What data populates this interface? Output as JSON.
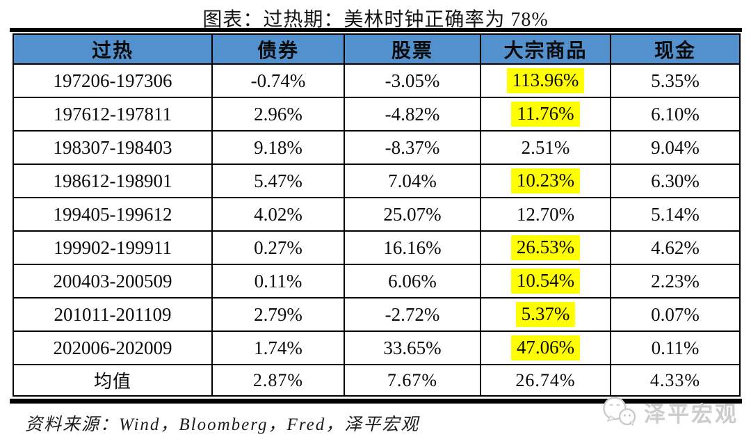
{
  "title": "图表：过热期：美林时钟正确率为 78%",
  "chart_data": {
    "type": "table",
    "title": "图表：过热期：美林时钟正确率为 78%",
    "columns": [
      "过热",
      "债券",
      "股票",
      "大宗商品",
      "现金"
    ],
    "rows": [
      [
        "197206-197306",
        "-0.74%",
        "-3.05%",
        "113.96%",
        "5.35%"
      ],
      [
        "197612-197811",
        "2.96%",
        "-4.82%",
        "11.76%",
        "6.10%"
      ],
      [
        "198307-198403",
        "9.18%",
        "-8.37%",
        "2.51%",
        "9.04%"
      ],
      [
        "198612-198901",
        "5.47%",
        "7.04%",
        "10.23%",
        "6.30%"
      ],
      [
        "199405-199612",
        "4.02%",
        "25.07%",
        "12.70%",
        "5.14%"
      ],
      [
        "199902-199911",
        "0.27%",
        "16.16%",
        "26.53%",
        "4.62%"
      ],
      [
        "200403-200509",
        "0.11%",
        "6.06%",
        "10.54%",
        "2.23%"
      ],
      [
        "201011-201109",
        "2.79%",
        "-2.72%",
        "5.37%",
        "0.07%"
      ],
      [
        "202006-202009",
        "1.74%",
        "33.65%",
        "47.06%",
        "0.11%"
      ],
      [
        "均值",
        "2.87%",
        "7.67%",
        "26.74%",
        "4.33%"
      ]
    ],
    "highlighted_cells": [
      [
        0,
        3
      ],
      [
        1,
        3
      ],
      [
        3,
        3
      ],
      [
        5,
        3
      ],
      [
        6,
        3
      ],
      [
        7,
        3
      ],
      [
        8,
        3
      ]
    ],
    "highlight_color": "#FFFF00",
    "header_bg_color": "#5291CD"
  },
  "footer": {
    "source_text": "资料来源：Wind，Bloomberg，Fred，泽平宏观"
  },
  "watermark": {
    "label": "泽平宏观"
  }
}
